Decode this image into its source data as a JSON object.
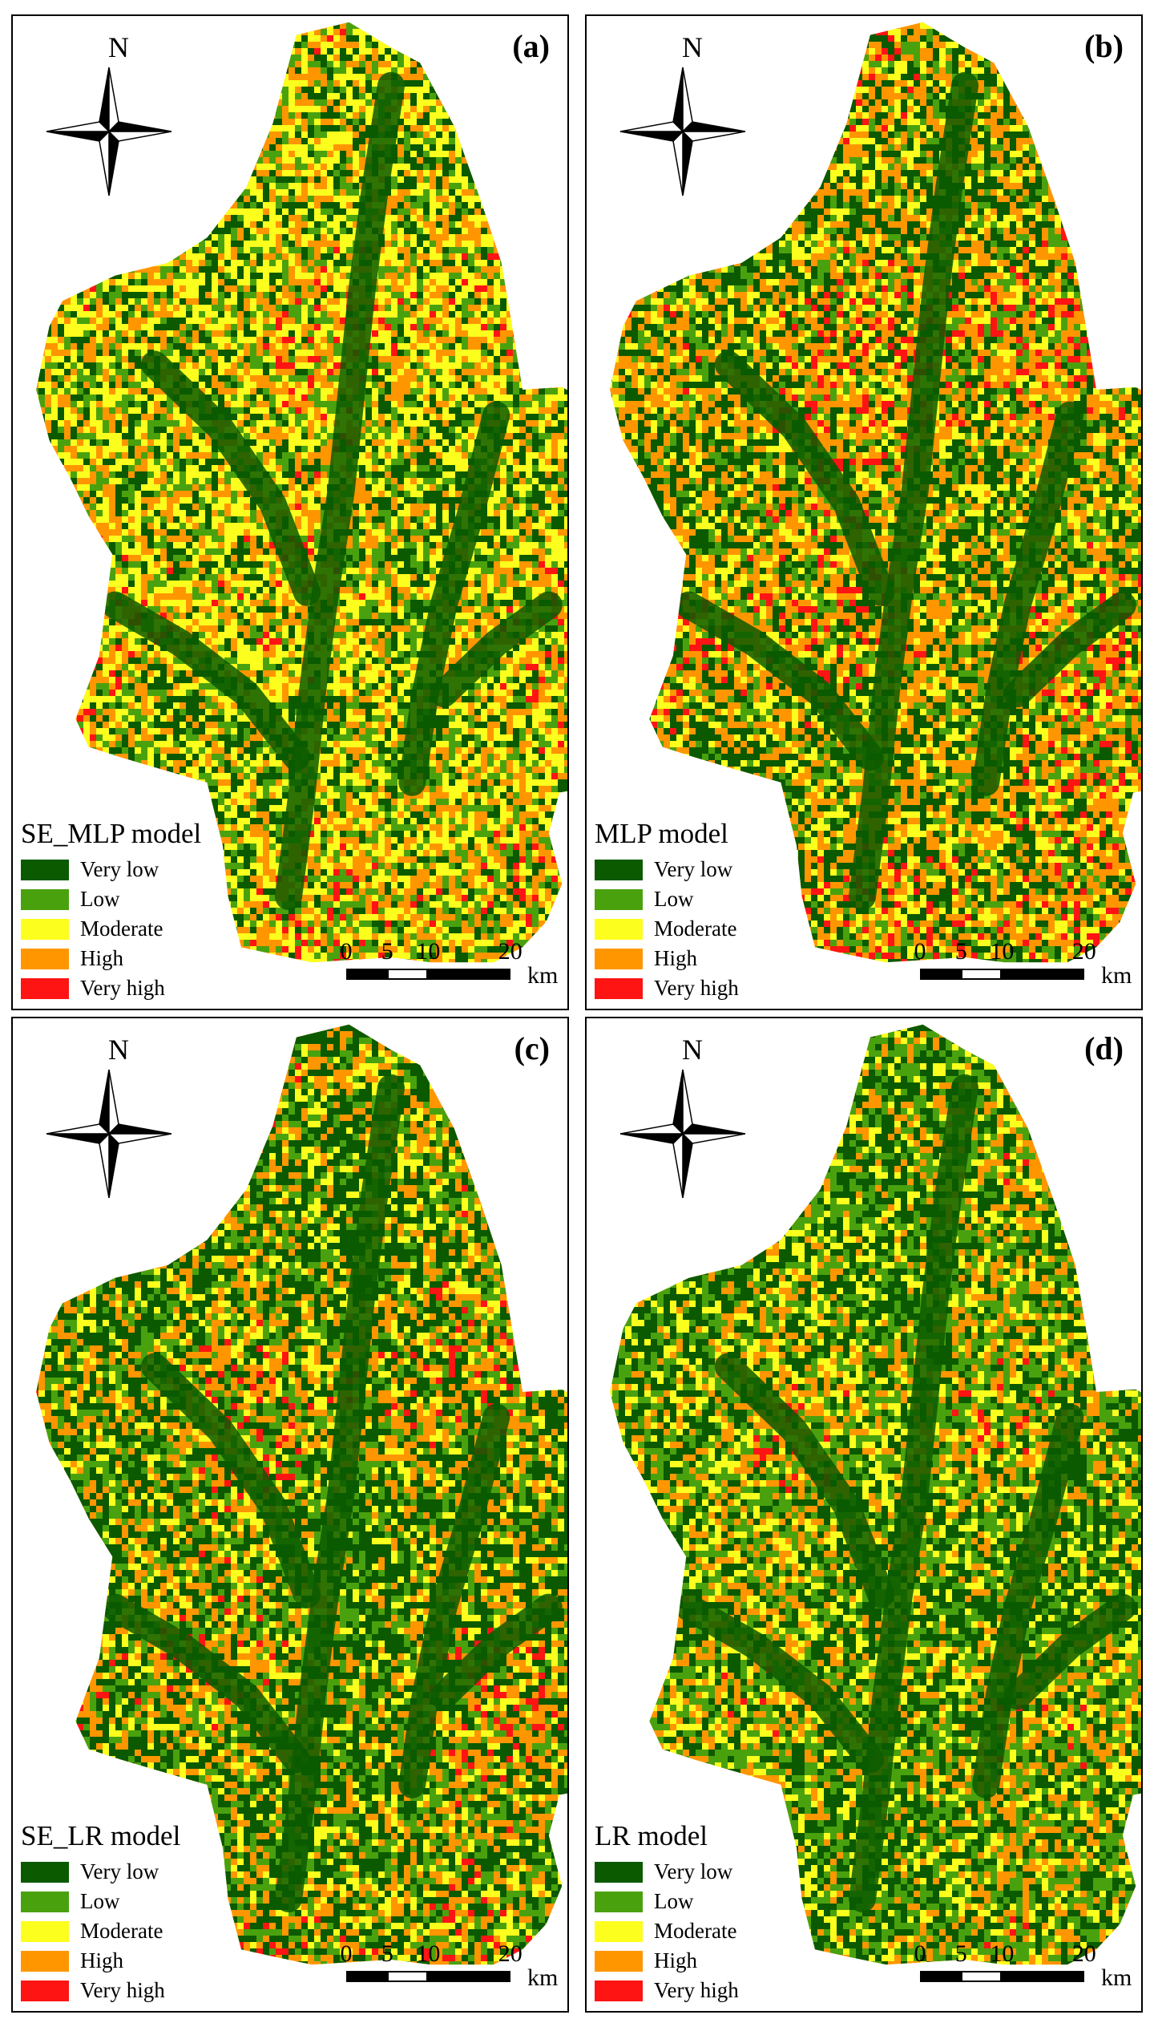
{
  "colors": {
    "very_low": "#0b5a00",
    "low": "#4aa10e",
    "moderate": "#fcff1d",
    "high": "#ff9600",
    "very_high": "#ff1414"
  },
  "legend_labels": [
    "Very low",
    "Low",
    "Moderate",
    "High",
    "Very high"
  ],
  "north": "N",
  "scale": {
    "ticks": [
      "0",
      "5",
      "10",
      "20"
    ],
    "unit": "km"
  },
  "panels": [
    {
      "label": "(a)",
      "title": "SE_MLP model"
    },
    {
      "label": "(b)",
      "title": "MLP model"
    },
    {
      "label": "(c)",
      "title": "SE_LR model"
    },
    {
      "label": "(d)",
      "title": "LR model"
    }
  ]
}
